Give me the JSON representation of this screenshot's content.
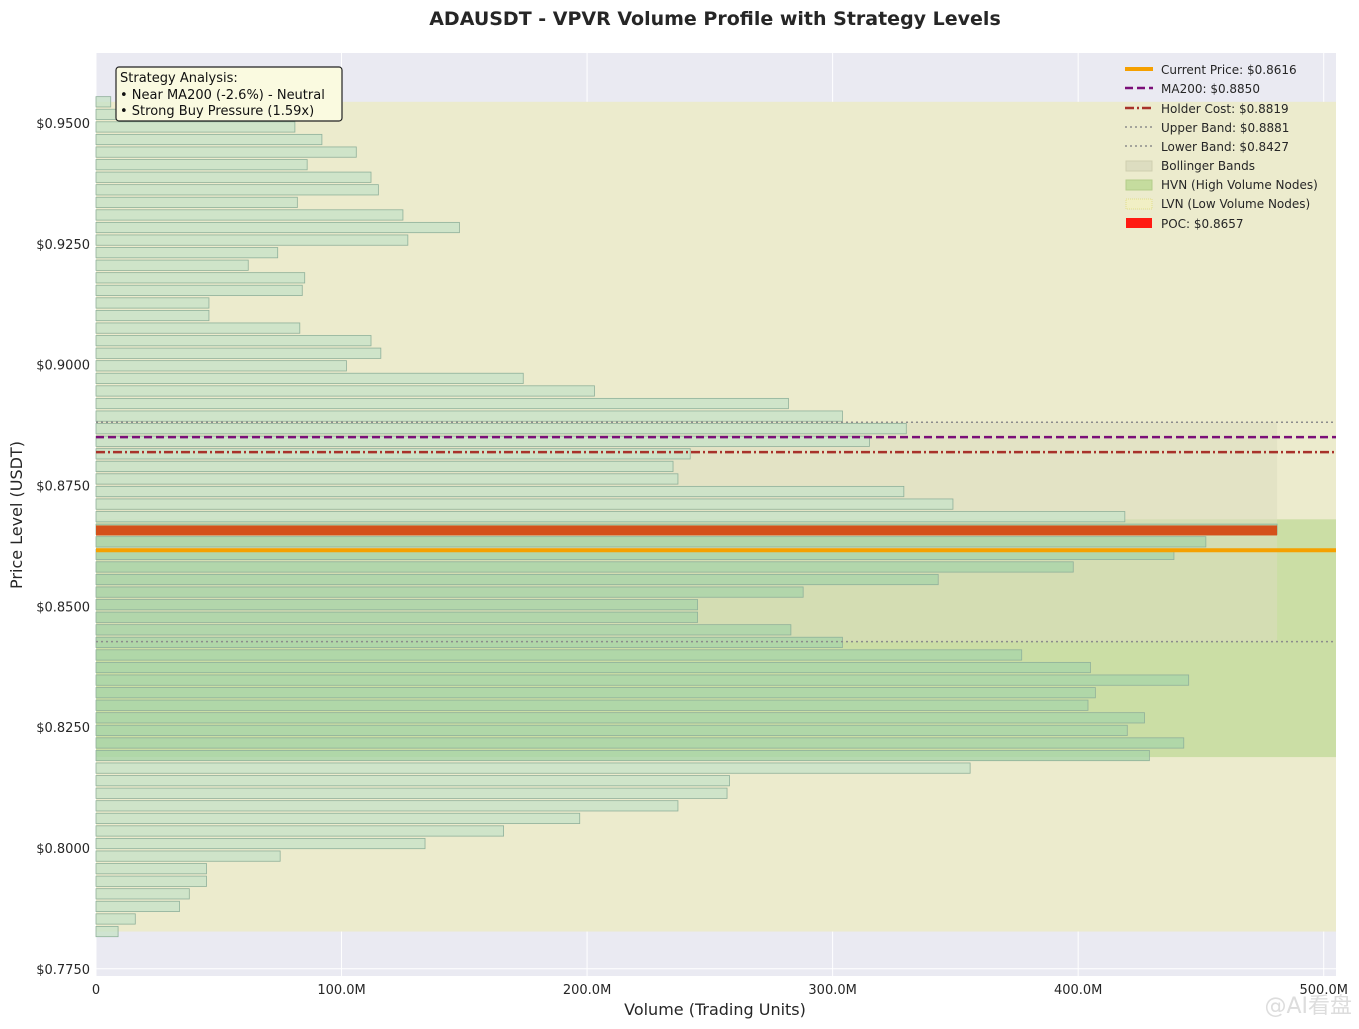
{
  "chart_data": {
    "type": "bar",
    "orientation": "horizontal",
    "title": "ADAUSDT - VPVR Volume Profile with Strategy Levels",
    "xlabel": "Volume (Trading Units)",
    "ylabel": "Price Level (USDT)",
    "xlim": [
      0,
      505
    ],
    "ylim": [
      0.7735,
      0.9645
    ],
    "x_ticks": [
      {
        "value": 0,
        "label": "0"
      },
      {
        "value": 100,
        "label": "100.0M"
      },
      {
        "value": 200,
        "label": "200.0M"
      },
      {
        "value": 300,
        "label": "300.0M"
      },
      {
        "value": 400,
        "label": "400.0M"
      },
      {
        "value": 500,
        "label": "500.0M"
      }
    ],
    "y_ticks": [
      {
        "value": 0.775,
        "label": "$0.7750"
      },
      {
        "value": 0.8,
        "label": "$0.8000"
      },
      {
        "value": 0.825,
        "label": "$0.8250"
      },
      {
        "value": 0.85,
        "label": "$0.8500"
      },
      {
        "value": 0.875,
        "label": "$0.8750"
      },
      {
        "value": 0.9,
        "label": "$0.9000"
      },
      {
        "value": 0.925,
        "label": "$0.9250"
      },
      {
        "value": 0.95,
        "label": "$0.9500"
      }
    ],
    "grid": true,
    "legend_position": "top-right",
    "bins": {
      "price_min": 0.7827,
      "price_max": 0.9544,
      "count": 67,
      "volumes": [
        9,
        16,
        34,
        38,
        45,
        45,
        75,
        134,
        166,
        197,
        237,
        257,
        258,
        356,
        429,
        443,
        420,
        427,
        404,
        407,
        445,
        405,
        377,
        304,
        283,
        245,
        245,
        288,
        343,
        398,
        439,
        452,
        481,
        419,
        349,
        329,
        237,
        235,
        242,
        315,
        330,
        304,
        282,
        203,
        174,
        102,
        116,
        112,
        83,
        46,
        46,
        84,
        85,
        62,
        74,
        127,
        148,
        125,
        82,
        115,
        112,
        86,
        106,
        92,
        81,
        74,
        6
      ],
      "fill_default": "#c8e2c8",
      "fill_hvn": "#a9d4a9",
      "edge": "#8fb09a"
    },
    "levels": [
      {
        "name": "Current Price: $0.8616",
        "price": 0.8616,
        "color": "#f5a000",
        "style": "solid",
        "width": 4
      },
      {
        "name": "MA200: $0.8850",
        "price": 0.885,
        "color": "#7b0f78",
        "style": "dashed",
        "width": 2.5
      },
      {
        "name": "Holder Cost: $0.8819",
        "price": 0.8819,
        "color": "#a8322a",
        "style": "dashdot",
        "width": 2.5
      },
      {
        "name": "Upper Band: $0.8881",
        "price": 0.8881,
        "color": "#8c8c8c",
        "style": "dotted",
        "width": 1.5
      },
      {
        "name": "Lower Band: $0.8427",
        "price": 0.8427,
        "color": "#8c8c8c",
        "style": "dotted",
        "width": 1.5
      }
    ],
    "bollinger_bands": {
      "label": "Bollinger Bands",
      "upper": 0.8881,
      "lower": 0.8427,
      "color": "#ddddc0"
    },
    "hvn_zone": {
      "label": "HVN (High Volume Nodes)",
      "from": 0.8188,
      "to": 0.868,
      "color": "#c5dc9e"
    },
    "lvn_zone": {
      "label": "LVN (Low Volume Nodes)",
      "from": 0.7827,
      "to": 0.9544,
      "color": "#ecebcd",
      "legend_color": "#e9e6a2"
    },
    "poc": {
      "label": "POC: $0.8657",
      "price": 0.8657,
      "volume": 481,
      "color": "#d4501a",
      "legend_color": "#ff1a12"
    },
    "annotation": {
      "lines": [
        "Strategy Analysis:",
        "• Near MA200 (-2.6%) - Neutral",
        "• Strong Buy Pressure (1.59x)"
      ]
    }
  },
  "watermark": {
    "text": "@AI看盘"
  }
}
